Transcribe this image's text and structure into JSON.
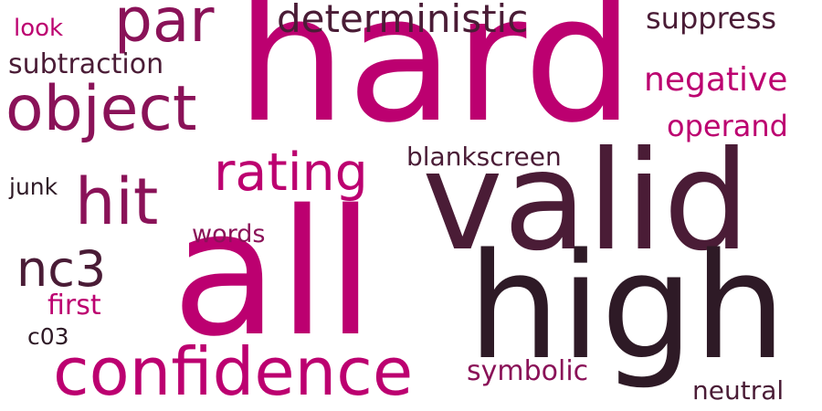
{
  "palette": {
    "magenta": "#bc0070",
    "plum": "#8a1258",
    "dark_plum": "#4a1c36",
    "near_black": "#2e1a26"
  },
  "words": [
    {
      "id": "hard",
      "text": "hard"
    },
    {
      "id": "valid",
      "text": "valid"
    },
    {
      "id": "all",
      "text": "all"
    },
    {
      "id": "high",
      "text": "high"
    },
    {
      "id": "confidence",
      "text": "confidence"
    },
    {
      "id": "object",
      "text": "object"
    },
    {
      "id": "par",
      "text": "par"
    },
    {
      "id": "deterministic",
      "text": "deterministic"
    },
    {
      "id": "hit",
      "text": "hit"
    },
    {
      "id": "rating",
      "text": "rating"
    },
    {
      "id": "nc3",
      "text": "nc3"
    },
    {
      "id": "negative",
      "text": "negative"
    },
    {
      "id": "suppress",
      "text": "suppress"
    },
    {
      "id": "subtraction",
      "text": "subtraction"
    },
    {
      "id": "operand",
      "text": "operand"
    },
    {
      "id": "blankscreen",
      "text": "blankscreen"
    },
    {
      "id": "symbolic",
      "text": "symbolic"
    },
    {
      "id": "first",
      "text": "first"
    },
    {
      "id": "words",
      "text": "words"
    },
    {
      "id": "look",
      "text": "look"
    },
    {
      "id": "junk",
      "text": "junk"
    },
    {
      "id": "c03",
      "text": "c03"
    },
    {
      "id": "neutral",
      "text": "neutral"
    }
  ]
}
